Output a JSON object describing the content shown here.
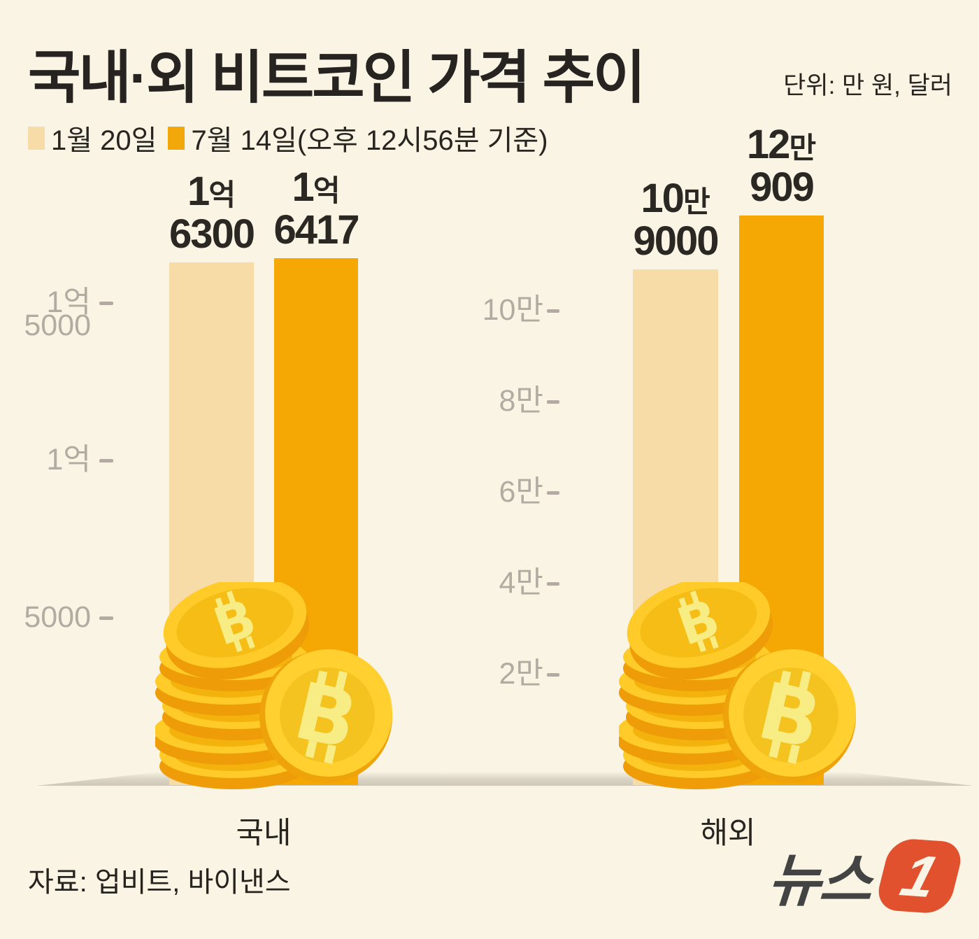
{
  "title": "국내·외 비트코인 가격 추이",
  "unit_note": "단위: 만 원, 달러",
  "legend": {
    "items": [
      {
        "label": "1월 20일",
        "color": "#F8DCA8"
      },
      {
        "label": "7월 14일(오후 12시56분 기준)",
        "color": "#F2A70A"
      }
    ]
  },
  "source": "자료: 업비트, 바이낸스",
  "logo": {
    "name": "뉴스1",
    "text": "뉴스",
    "badge_digit": "1",
    "badge_color": "#E2512D"
  },
  "colors": {
    "background": "#FAF4E4",
    "bar_jan": "#F8DCA8",
    "bar_jul": "#F5A704",
    "tick": "#B3ABA1",
    "text_dark": "#282420",
    "coin_gold": "#FFCB28",
    "coin_dark": "#EE9C07",
    "coin_symbol": "#F8EC85"
  },
  "chart_data": [
    {
      "type": "bar",
      "title": "국내",
      "unit": "만 원",
      "categories": [
        "1월 20일",
        "7월 14일"
      ],
      "values": [
        16300,
        16417
      ],
      "bars": [
        {
          "value": 16300,
          "label_top_num": "1",
          "label_top_suffix": "억",
          "label_bottom": "6300"
        },
        {
          "value": 16417,
          "label_top_num": "1",
          "label_top_suffix": "억",
          "label_bottom": "6417"
        }
      ],
      "yticks": [
        {
          "value": 15000,
          "lines": [
            "1억",
            "5000"
          ]
        },
        {
          "value": 10000,
          "lines": [
            "1억"
          ]
        },
        {
          "value": 5000,
          "lines": [
            "5000"
          ]
        }
      ],
      "ylim": [
        0,
        17000
      ],
      "grid": false,
      "legend_position": "top-left"
    },
    {
      "type": "bar",
      "title": "해외",
      "unit": "달러",
      "categories": [
        "1월 20일",
        "7월 14일"
      ],
      "values": [
        109000,
        120909
      ],
      "bars": [
        {
          "value": 109000,
          "label_top_num": "10",
          "label_top_suffix": "만",
          "label_bottom": "9000"
        },
        {
          "value": 120909,
          "label_top_num": "12",
          "label_top_suffix": "만",
          "label_bottom": "909"
        }
      ],
      "yticks": [
        {
          "value": 100000,
          "lines": [
            "10만"
          ]
        },
        {
          "value": 80000,
          "lines": [
            "8만"
          ]
        },
        {
          "value": 60000,
          "lines": [
            "6만"
          ]
        },
        {
          "value": 40000,
          "lines": [
            "4만"
          ]
        },
        {
          "value": 20000,
          "lines": [
            "2만"
          ]
        }
      ],
      "ylim": [
        0,
        130000
      ],
      "grid": false,
      "legend_position": "top-left"
    }
  ]
}
